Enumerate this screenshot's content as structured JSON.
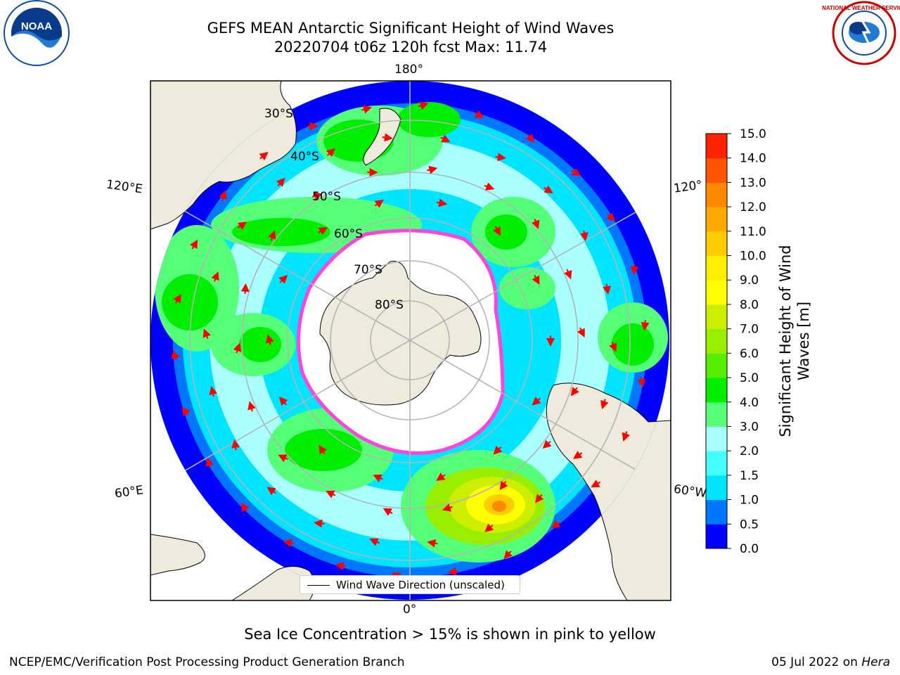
{
  "header": {
    "title_line1": "GEFS MEAN Antarctic Significant Height of Wind Waves",
    "title_line2": "20220704 t06z 120h fcst   Max: 11.74"
  },
  "logos": {
    "left": {
      "icon": "noaa-logo-icon",
      "text": "NOAA"
    },
    "right": {
      "icon": "national-weather-service-logo-icon",
      "text": "NATIONAL WEATHER SERVICE"
    }
  },
  "map": {
    "projection": "south-polar-stereographic",
    "longitude_labels": {
      "top": "180°",
      "bottom": "0°",
      "left_upper": "120°E",
      "left_lower": "60°E",
      "right_upper": "120°",
      "right_lower": "60°W"
    },
    "latitude_labels": [
      "30°S",
      "40°S",
      "50°S",
      "60°S",
      "70°S",
      "80°S"
    ],
    "legend_label": "Wind Wave Direction (unscaled)",
    "colors": {
      "land": "#eeebdc",
      "ice": "#ffffff",
      "ice_edge": "#ff44dd",
      "arrow": "#ff0000",
      "grid": "#b4b4b4"
    }
  },
  "colorbar": {
    "title": "Significant Height of Wind Waves [m]",
    "ticks": [
      "0.0",
      "0.5",
      "1.0",
      "1.5",
      "2.0",
      "3.0",
      "4.0",
      "5.0",
      "6.0",
      "7.0",
      "8.0",
      "9.0",
      "10.0",
      "11.0",
      "12.0",
      "13.0",
      "14.0",
      "15.0"
    ],
    "colors": [
      "#0000ff",
      "#0077ff",
      "#00e5ff",
      "#44ffff",
      "#aaffff",
      "#55ff77",
      "#00ee00",
      "#55ee00",
      "#99ee00",
      "#ccee00",
      "#ffff00",
      "#ffee00",
      "#ffcc00",
      "#ffaa00",
      "#ff8800",
      "#ff5500",
      "#ff2200"
    ]
  },
  "footer": {
    "note": "Sea Ice Concentration > 15% is shown in pink to yellow",
    "credit": "NCEP/EMC/Verification Post Processing Product Generation Branch",
    "date": "05 Jul 2022 on",
    "host": "Hera"
  }
}
